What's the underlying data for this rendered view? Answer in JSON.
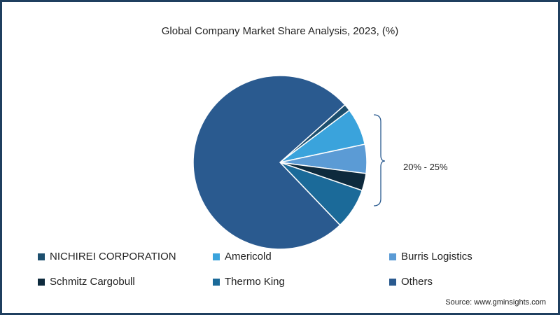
{
  "chart_data": {
    "type": "pie",
    "title": "Global Company Market Share Analysis, 2023, (%)",
    "slices": [
      {
        "label": "NICHIREI CORPORATION",
        "value": 1.3,
        "color": "#1d4f6e"
      },
      {
        "label": "Americold",
        "value": 6.9,
        "color": "#3aa3dc"
      },
      {
        "label": "Burris Logistics",
        "value": 5.4,
        "color": "#5b9bd5"
      },
      {
        "label": "Schmitz Cargobull",
        "value": 3.2,
        "color": "#0e2a3d"
      },
      {
        "label": "Thermo King",
        "value": 7.6,
        "color": "#1b6a99"
      },
      {
        "label": "Others",
        "value": 75.6,
        "color": "#2a5a8f"
      }
    ],
    "annotation": "20% - 25%",
    "legend_position": "bottom"
  },
  "source": "Source: www.gminsights.com"
}
